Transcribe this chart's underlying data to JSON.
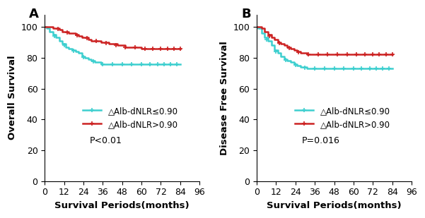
{
  "panel_A": {
    "label": "A",
    "ylabel": "Overall Survival",
    "xlabel": "Survival Periods（months）",
    "pvalue": "P<0.01",
    "ylim": [
      0,
      108
    ],
    "xlim": [
      0,
      96
    ],
    "yticks": [
      0,
      20,
      40,
      60,
      80,
      100
    ],
    "xticks": [
      0,
      12,
      24,
      36,
      48,
      60,
      72,
      84,
      96
    ],
    "legend1": "△Alb-dNLR≤0.90",
    "legend2": "△Alb-dNLR>0.90",
    "color1": "#3DCFCF",
    "color2": "#CC2222",
    "curve1_x": [
      0,
      1,
      3,
      5,
      7,
      9,
      11,
      13,
      15,
      17,
      19,
      21,
      23,
      25,
      27,
      29,
      31,
      33,
      35,
      40,
      45,
      50,
      55,
      60,
      65,
      70,
      75,
      80,
      84
    ],
    "curve1_y": [
      100,
      99,
      97,
      95,
      93,
      91,
      89,
      87,
      86,
      85,
      84,
      83,
      81,
      80,
      79,
      78,
      77,
      77,
      76,
      76,
      76,
      76,
      76,
      76,
      76,
      76,
      76,
      76,
      76
    ],
    "curve2_x": [
      0,
      1,
      3,
      5,
      7,
      9,
      11,
      13,
      15,
      17,
      19,
      21,
      23,
      25,
      27,
      29,
      31,
      33,
      35,
      40,
      45,
      50,
      55,
      60,
      65,
      70,
      75,
      80,
      84
    ],
    "curve2_y": [
      100,
      100,
      100,
      99,
      99,
      98,
      97,
      97,
      96,
      96,
      95,
      94,
      93,
      93,
      92,
      91,
      91,
      91,
      90,
      89,
      88,
      87,
      87,
      86,
      86,
      86,
      86,
      86,
      86
    ],
    "censor1_x": [
      6,
      12,
      18,
      24,
      30,
      36,
      42,
      48,
      54,
      60,
      65,
      70,
      74,
      78,
      82
    ],
    "censor2_x": [
      8,
      14,
      20,
      26,
      32,
      38,
      44,
      50,
      56,
      62,
      67,
      72,
      76,
      80,
      84
    ]
  },
  "panel_B": {
    "label": "B",
    "ylabel": "Disease Free Survival",
    "xlabel": "Survival Periods（months）",
    "pvalue": "P=0.016",
    "ylim": [
      0,
      108
    ],
    "xlim": [
      0,
      96
    ],
    "yticks": [
      0,
      20,
      40,
      60,
      80,
      100
    ],
    "xticks": [
      0,
      12,
      24,
      36,
      48,
      60,
      72,
      84,
      96
    ],
    "legend1": "△Alb-dNLR≤0.90",
    "legend2": "△Alb-dNLR>0.90",
    "color1": "#3DCFCF",
    "color2": "#CC2222",
    "curve1_x": [
      0,
      1,
      3,
      5,
      7,
      9,
      11,
      13,
      15,
      17,
      19,
      21,
      23,
      25,
      27,
      29,
      31,
      33,
      35,
      40,
      45,
      50,
      55,
      60,
      65,
      70,
      75,
      80,
      84
    ],
    "curve1_y": [
      100,
      99,
      96,
      93,
      91,
      88,
      85,
      83,
      81,
      79,
      78,
      77,
      76,
      75,
      74,
      74,
      73,
      73,
      73,
      73,
      73,
      73,
      73,
      73,
      73,
      73,
      73,
      73,
      73
    ],
    "curve2_x": [
      0,
      1,
      3,
      5,
      7,
      9,
      11,
      13,
      15,
      17,
      19,
      21,
      23,
      25,
      27,
      29,
      31,
      33,
      35,
      40,
      45,
      50,
      55,
      60,
      65,
      70,
      75,
      80,
      84
    ],
    "curve2_y": [
      100,
      100,
      99,
      97,
      95,
      93,
      92,
      90,
      89,
      88,
      87,
      86,
      85,
      84,
      83,
      83,
      82,
      82,
      82,
      82,
      82,
      82,
      82,
      82,
      82,
      82,
      82,
      82,
      82
    ],
    "censor1_x": [
      6,
      12,
      18,
      24,
      30,
      36,
      42,
      48,
      54,
      60,
      65,
      70,
      74,
      78,
      82
    ],
    "censor2_x": [
      8,
      14,
      20,
      26,
      32,
      38,
      44,
      50,
      56,
      62,
      67,
      72,
      76,
      80,
      84
    ]
  },
  "fig_bg": "#ffffff",
  "panel_bg": "#ffffff",
  "tick_fontsize": 9,
  "label_fontsize": 9.5,
  "legend_fontsize": 8.5,
  "pvalue_fontsize": 9,
  "panel_label_fontsize": 13,
  "linewidth": 1.8,
  "censor_markersize": 5,
  "censor_markeredgewidth": 1.2
}
